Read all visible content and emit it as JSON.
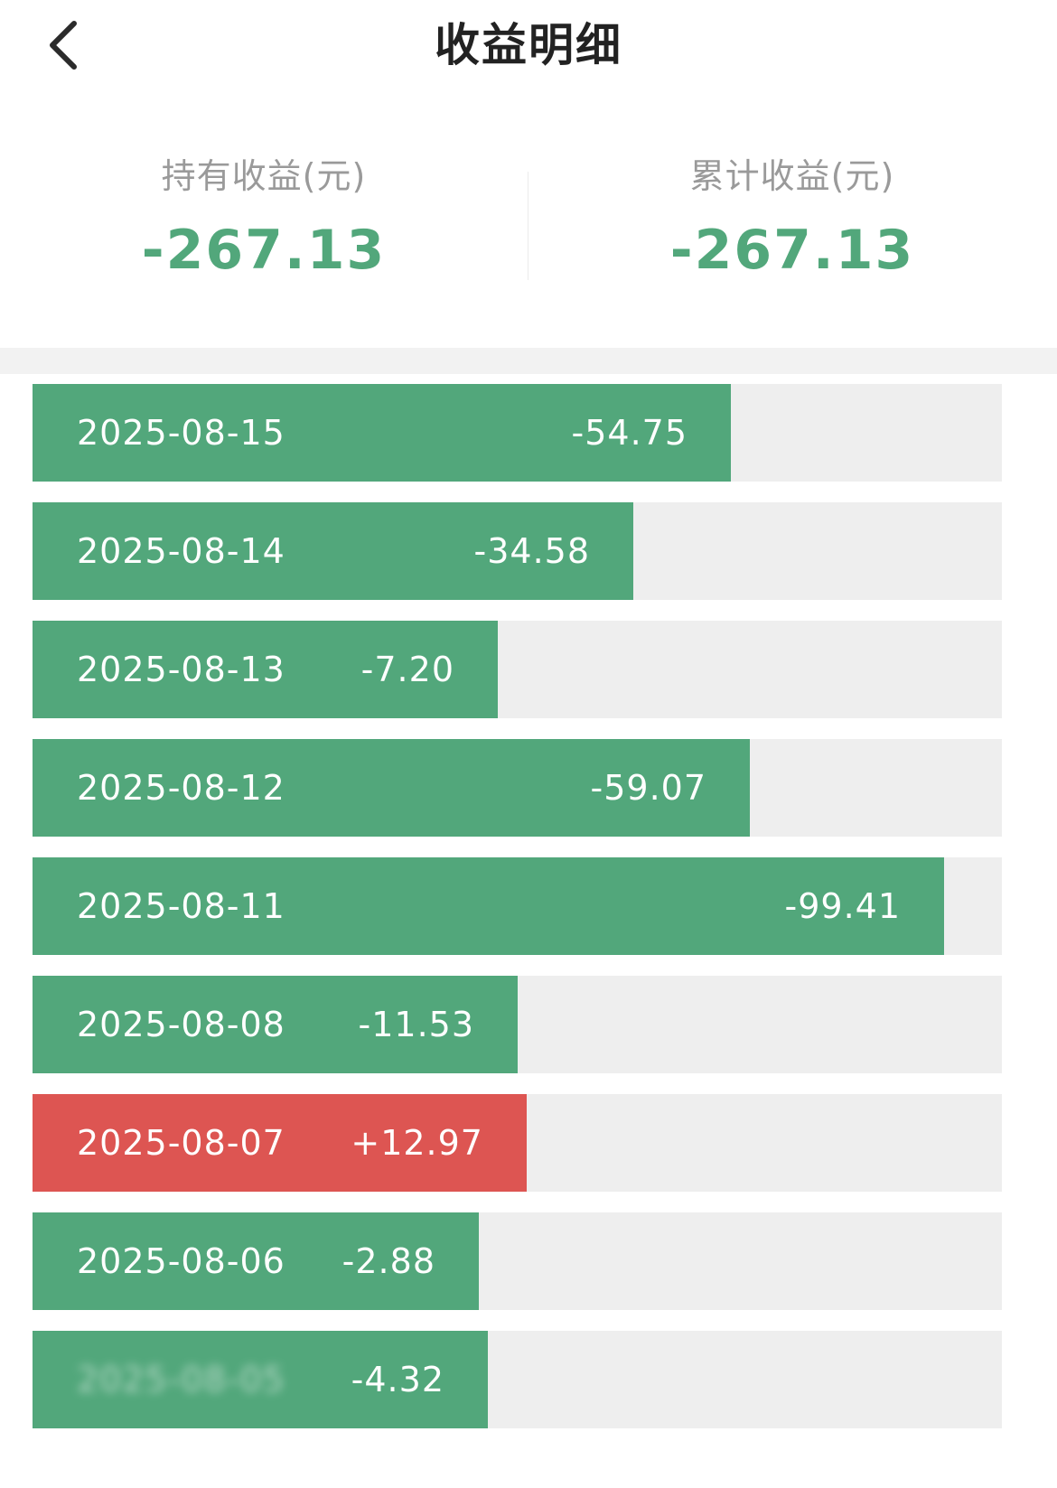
{
  "header": {
    "title": "收益明细"
  },
  "summary": {
    "holding": {
      "label": "持有收益(元)",
      "value": "-267.13"
    },
    "cumulative": {
      "label": "累计收益(元)",
      "value": "-267.13"
    }
  },
  "colors": {
    "loss": "#52a77b",
    "gain": "#dd5552",
    "track": "#eeeeee"
  },
  "rows": [
    {
      "date": "2025-08-15",
      "value": "-54.75",
      "type": "loss",
      "fill_fraction": 0.72
    },
    {
      "date": "2025-08-14",
      "value": "-34.58",
      "type": "loss",
      "fill_fraction": 0.62
    },
    {
      "date": "2025-08-13",
      "value": "-7.20",
      "type": "loss",
      "fill_fraction": 0.48
    },
    {
      "date": "2025-08-12",
      "value": "-59.07",
      "type": "loss",
      "fill_fraction": 0.74
    },
    {
      "date": "2025-08-11",
      "value": "-99.41",
      "type": "loss",
      "fill_fraction": 0.94
    },
    {
      "date": "2025-08-08",
      "value": "-11.53",
      "type": "loss",
      "fill_fraction": 0.5
    },
    {
      "date": "2025-08-07",
      "value": "+12.97",
      "type": "gain",
      "fill_fraction": 0.51
    },
    {
      "date": "2025-08-06",
      "value": "-2.88",
      "type": "loss",
      "fill_fraction": 0.46
    },
    {
      "date": "2025-08-05",
      "value": "-4.32",
      "type": "loss",
      "fill_fraction": 0.47,
      "obscured": true
    }
  ]
}
